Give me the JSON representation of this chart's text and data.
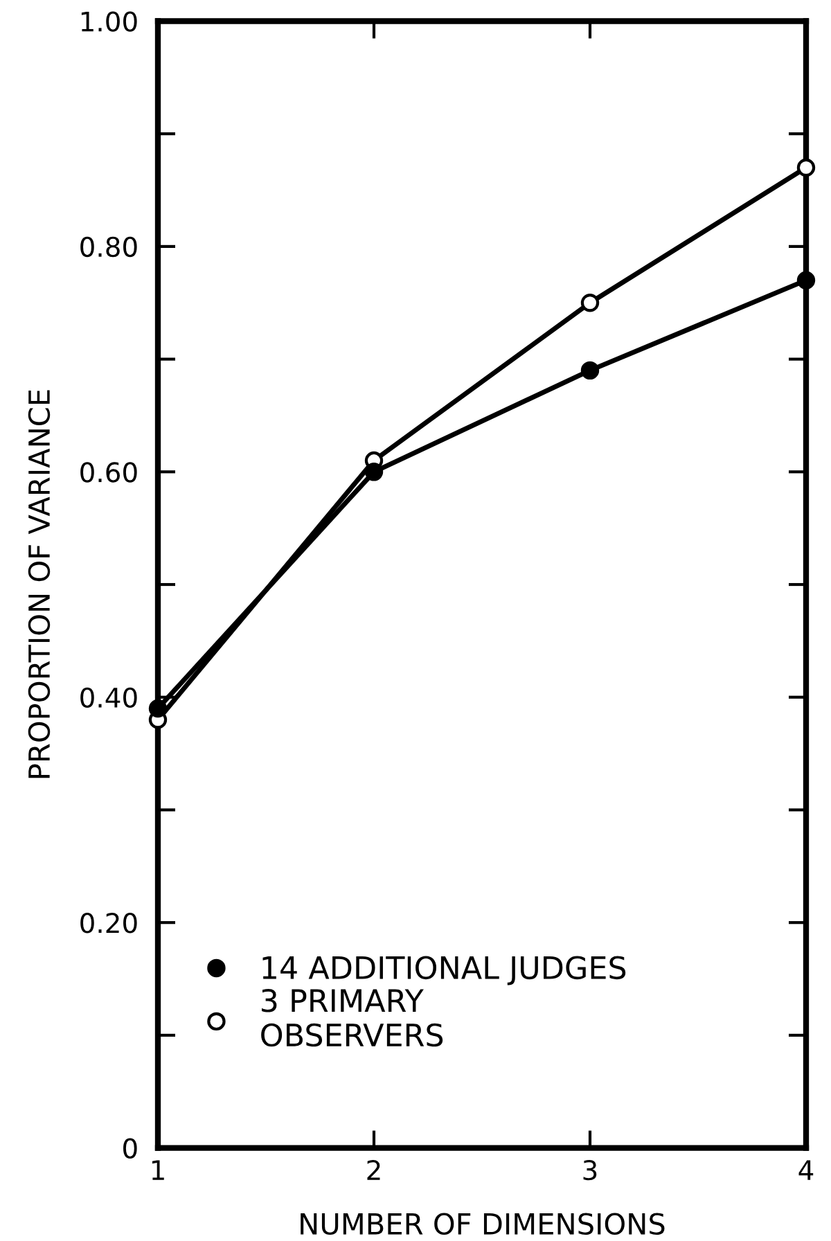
{
  "chart_data": {
    "type": "line",
    "xlabel": "NUMBER OF DIMENSIONS",
    "ylabel": "PROPORTION OF VARIANCE",
    "x": [
      1,
      2,
      3,
      4
    ],
    "series": [
      {
        "name": "14 ADDITIONAL JUDGES",
        "color": "#000000",
        "values": [
          0.39,
          0.6,
          0.69,
          0.77
        ]
      },
      {
        "name": "3 PRIMARY\nOBSERVERS",
        "color": "#000000",
        "values": [
          0.38,
          0.61,
          0.75,
          0.87
        ]
      }
    ],
    "xlim": [
      1,
      4
    ],
    "xticks": [
      1,
      2,
      3,
      4
    ],
    "ylim": [
      0,
      1.0
    ],
    "yticks": [
      {
        "value": 0,
        "label": "0"
      },
      {
        "value": 0.1,
        "label": null
      },
      {
        "value": 0.2,
        "label": "0.20"
      },
      {
        "value": 0.3,
        "label": null
      },
      {
        "value": 0.4,
        "label": "0.40"
      },
      {
        "value": 0.5,
        "label": null
      },
      {
        "value": 0.6,
        "label": "0.60"
      },
      {
        "value": 0.7,
        "label": null
      },
      {
        "value": 0.8,
        "label": "0.80"
      },
      {
        "value": 0.9,
        "label": null
      },
      {
        "value": 1.0,
        "label": "1.00"
      }
    ],
    "marker": "circle",
    "line_style": "solid",
    "grid": false,
    "legend": "bottom left"
  }
}
